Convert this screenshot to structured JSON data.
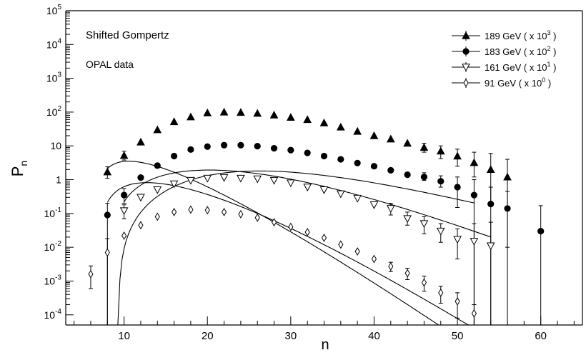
{
  "chart_data": {
    "type": "scatter",
    "title": "",
    "xlabel": "n",
    "ylabel_main": "P",
    "ylabel_sub": "n",
    "xlim": [
      3,
      65
    ],
    "ylim": [
      5e-05,
      100000
    ],
    "yscale": "log",
    "x_ticks": [
      10,
      20,
      30,
      40,
      50,
      60
    ],
    "y_ticks": [
      {
        "value": 0.0001,
        "base": "10",
        "exp": "-4"
      },
      {
        "value": 0.001,
        "base": "10",
        "exp": "-3"
      },
      {
        "value": 0.01,
        "base": "10",
        "exp": "-2"
      },
      {
        "value": 0.1,
        "base": "10",
        "exp": "-1"
      },
      {
        "value": 1,
        "base": "1",
        "exp": ""
      },
      {
        "value": 10,
        "base": "10",
        "exp": ""
      },
      {
        "value": 100,
        "base": "10",
        "exp": "2"
      },
      {
        "value": 1000,
        "base": "10",
        "exp": "3"
      },
      {
        "value": 10000,
        "base": "10",
        "exp": "4"
      },
      {
        "value": 100000,
        "base": "10",
        "exp": "5"
      }
    ],
    "annotations": [
      "Shifted Gompertz",
      "OPAL data"
    ],
    "legend_position": "top-right",
    "series": [
      {
        "name": "189 GeV ( x 10",
        "name_exp": "3",
        "name_end": ")",
        "marker": "triangle-up-filled",
        "x": [
          8,
          10,
          12,
          14,
          16,
          18,
          20,
          22,
          24,
          26,
          28,
          30,
          32,
          34,
          36,
          38,
          40,
          42,
          44,
          46,
          48,
          50,
          52,
          54,
          56
        ],
        "y": [
          1.7,
          5.2,
          13,
          30,
          52,
          72,
          95,
          100,
          98,
          92,
          82,
          70,
          60,
          48,
          36,
          27,
          20,
          16,
          12,
          9,
          7,
          5,
          3.2,
          2,
          1.2
        ],
        "err_low": [
          1.1,
          3.8,
          null,
          null,
          null,
          null,
          null,
          null,
          null,
          null,
          null,
          null,
          null,
          null,
          null,
          null,
          null,
          null,
          null,
          6.5,
          4.2,
          2.5,
          1.2,
          0.2,
          0.01
        ],
        "err_high": [
          2.4,
          7,
          null,
          null,
          null,
          null,
          null,
          null,
          null,
          null,
          null,
          null,
          null,
          null,
          null,
          null,
          null,
          null,
          null,
          12,
          10,
          8,
          6.5,
          6,
          4
        ],
        "fit": {
          "x": [
            8,
            56
          ],
          "A": 1.7,
          "B": 0.45,
          "C": 0.02,
          "d0": 6.3
        }
      },
      {
        "name": "183 GeV ( x 10",
        "name_exp": "2",
        "name_end": ")",
        "marker": "circle-filled",
        "x": [
          8,
          10,
          12,
          14,
          16,
          18,
          20,
          22,
          24,
          26,
          28,
          30,
          32,
          34,
          36,
          38,
          40,
          42,
          44,
          46,
          48,
          50,
          52,
          54,
          56,
          60
        ],
        "y": [
          0.09,
          0.35,
          1.15,
          2.6,
          5,
          7.8,
          9.5,
          10.5,
          10.5,
          9.8,
          8.5,
          7.5,
          6.2,
          5,
          4,
          3.1,
          2.5,
          1.9,
          1.4,
          1.2,
          0.9,
          0.6,
          0.35,
          0.19,
          0.14,
          0.03
        ],
        "err_low": [
          5e-05,
          0.2,
          null,
          null,
          null,
          null,
          null,
          null,
          null,
          null,
          null,
          null,
          null,
          null,
          null,
          null,
          null,
          null,
          null,
          0.95,
          0.6,
          0.15,
          5e-05,
          5e-05,
          5e-05,
          5e-05
        ],
        "err_high": [
          0.2,
          0.55,
          null,
          null,
          null,
          null,
          null,
          null,
          null,
          null,
          null,
          null,
          null,
          null,
          null,
          null,
          null,
          null,
          null,
          1.6,
          1.3,
          1.2,
          1,
          0.6,
          0.45,
          0.17
        ],
        "fit": {
          "x": [
            8,
            60
          ],
          "A": 0.21,
          "B": 0.4,
          "C": 0.042,
          "d0": 6.8
        }
      },
      {
        "name": "161 GeV ( x 10",
        "name_exp": "1",
        "name_end": ")",
        "marker": "triangle-down-open",
        "x": [
          10,
          12,
          14,
          16,
          18,
          20,
          22,
          24,
          26,
          28,
          30,
          32,
          34,
          36,
          38,
          40,
          42,
          44,
          46,
          48,
          50,
          52,
          54
        ],
        "y": [
          0.12,
          0.3,
          0.5,
          0.75,
          0.95,
          1.1,
          1.15,
          1.1,
          1.05,
          0.95,
          0.8,
          0.6,
          0.5,
          0.38,
          0.28,
          0.18,
          0.14,
          0.07,
          0.05,
          0.03,
          0.017,
          0.015,
          0.011
        ],
        "err_low": [
          0.07,
          null,
          null,
          null,
          null,
          null,
          null,
          null,
          null,
          null,
          null,
          null,
          null,
          null,
          null,
          null,
          0.09,
          0.045,
          0.025,
          0.014,
          0.0045,
          0.0002,
          5e-05
        ],
        "err_high": [
          0.18,
          null,
          null,
          null,
          null,
          null,
          null,
          null,
          null,
          null,
          null,
          null,
          null,
          null,
          null,
          null,
          0.2,
          0.11,
          0.08,
          0.05,
          0.035,
          0.05,
          0.055
        ],
        "fit": {
          "x": [
            10,
            54
          ],
          "A": 0.1,
          "B": 0.25,
          "C": 0.057,
          "d0": 8.3
        }
      },
      {
        "name": "91 GeV  ( x 10",
        "name_exp": "0",
        "name_end": ")",
        "marker": "diamond-open",
        "x": [
          6,
          8,
          10,
          12,
          14,
          16,
          18,
          20,
          22,
          24,
          26,
          28,
          30,
          32,
          34,
          36,
          38,
          40,
          42,
          44,
          46,
          48,
          50,
          52
        ],
        "y": [
          0.0016,
          0.007,
          0.022,
          0.045,
          0.08,
          0.11,
          0.13,
          0.125,
          0.11,
          0.095,
          0.075,
          0.055,
          0.04,
          0.028,
          0.019,
          0.012,
          0.0075,
          0.0045,
          0.0027,
          0.0017,
          0.0009,
          0.00045,
          0.00025,
          0.00011
        ],
        "err_low": [
          0.0006,
          5e-05,
          null,
          null,
          null,
          null,
          null,
          null,
          null,
          null,
          null,
          null,
          null,
          null,
          null,
          null,
          null,
          null,
          0.0019,
          0.0011,
          0.0005,
          0.00022,
          8e-05,
          5e-05
        ],
        "err_high": [
          0.0028,
          0.018,
          null,
          null,
          null,
          null,
          null,
          null,
          null,
          null,
          null,
          null,
          null,
          null,
          null,
          null,
          null,
          null,
          0.0036,
          0.0024,
          0.0014,
          0.0007,
          0.00045,
          0.0002
        ],
        "fit": {
          "x": [
            6,
            52
          ],
          "A": 0.014,
          "B": 0.17,
          "C": 0.096,
          "d0": 9.3
        }
      }
    ]
  }
}
